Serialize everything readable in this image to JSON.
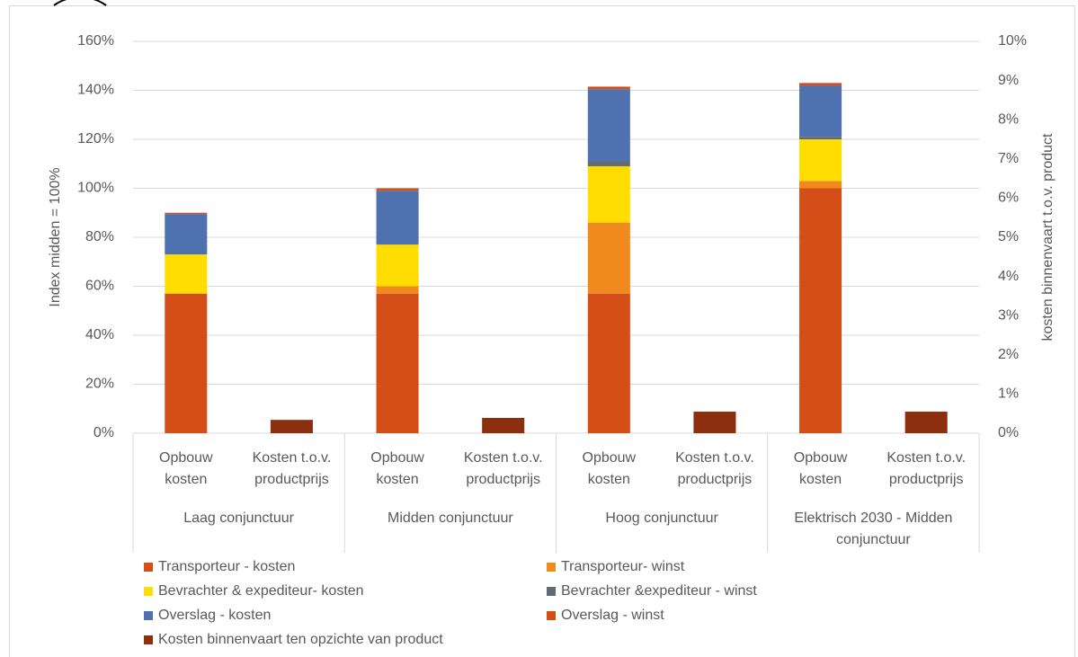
{
  "chart_data": {
    "type": "bar",
    "stacked": true,
    "categories": [
      "Opbouw kosten",
      "Kosten t.o.v. productprijs",
      "Opbouw kosten",
      "Kosten t.o.v. productprijs",
      "Opbouw kosten",
      "Kosten t.o.v. productprijs",
      "Opbouw kosten",
      "Kosten t.o.v. productprijs"
    ],
    "groups": [
      "Laag conjunctuur",
      "Midden conjunctuur",
      "Hoog conjunctuur",
      "Elektrisch 2030 - Midden conjunctuur"
    ],
    "ylabel": "Index midden = 100%",
    "y2label": "kosten binnenvaart t.o.v. product",
    "ylim": [
      0,
      160
    ],
    "yticks": [
      {
        "value": 0,
        "label": "0%"
      },
      {
        "value": 20,
        "label": "20%"
      },
      {
        "value": 40,
        "label": "40%"
      },
      {
        "value": 60,
        "label": "60%"
      },
      {
        "value": 80,
        "label": "80%"
      },
      {
        "value": 100,
        "label": "100%"
      },
      {
        "value": 120,
        "label": "120%"
      },
      {
        "value": 140,
        "label": "140%"
      },
      {
        "value": 160,
        "label": "160%"
      }
    ],
    "y2lim": [
      0,
      10
    ],
    "y2ticks": [
      {
        "value": 0,
        "label": "0%"
      },
      {
        "value": 1,
        "label": "1%"
      },
      {
        "value": 2,
        "label": "2%"
      },
      {
        "value": 3,
        "label": "3%"
      },
      {
        "value": 4,
        "label": "4%"
      },
      {
        "value": 5,
        "label": "5%"
      },
      {
        "value": 6,
        "label": "6%"
      },
      {
        "value": 7,
        "label": "7%"
      },
      {
        "value": 8,
        "label": "8%"
      },
      {
        "value": 9,
        "label": "9%"
      },
      {
        "value": 10,
        "label": "10%"
      }
    ],
    "grid": true,
    "legend": "bottom",
    "series": [
      {
        "name": "Transporteur - kosten",
        "color": "#d34f17",
        "values": [
          57,
          null,
          57,
          null,
          57,
          null,
          100,
          null
        ]
      },
      {
        "name": "Transporteur- winst",
        "color": "#f08a1e",
        "values": [
          0,
          null,
          3,
          null,
          29,
          null,
          3,
          null
        ]
      },
      {
        "name": "Bevrachter & expediteur- kosten",
        "color": "#ffdd00",
        "values": [
          16,
          null,
          17,
          null,
          23,
          null,
          17,
          null
        ]
      },
      {
        "name": "Bevrachter &expediteur - winst",
        "color": "#5f6b77",
        "values": [
          0,
          null,
          0,
          null,
          2,
          null,
          1,
          null
        ]
      },
      {
        "name": "Overslag - kosten",
        "color": "#4f71b0",
        "values": [
          16.5,
          null,
          22,
          null,
          29.5,
          null,
          21,
          null
        ]
      },
      {
        "name": "Overslag - winst",
        "color": "#d34f17",
        "values": [
          0.5,
          null,
          1,
          null,
          1,
          null,
          1,
          null
        ]
      },
      {
        "name": "Kosten binnenvaart ten opzichte van product",
        "color": "#8b2f0f",
        "axis": "y2",
        "values": [
          null,
          0.34,
          null,
          0.39,
          null,
          0.55,
          null,
          0.55
        ]
      }
    ]
  }
}
